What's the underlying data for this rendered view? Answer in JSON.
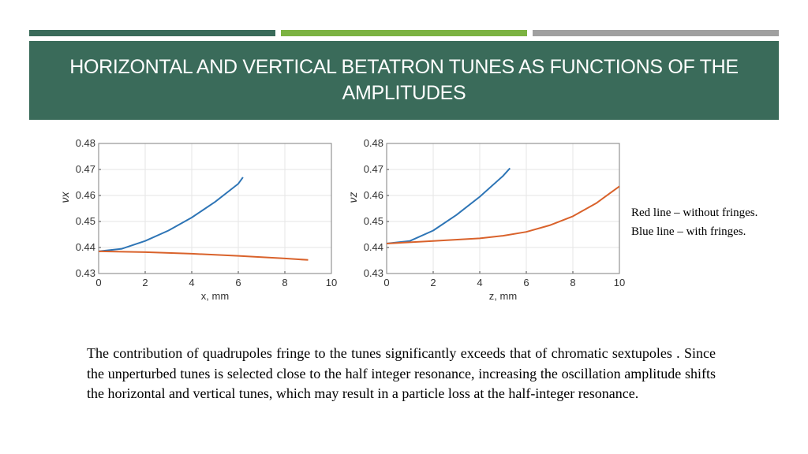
{
  "colors": {
    "title_bg": "#3a6b5a",
    "accent1": "#3a6b5a",
    "accent2": "#7cb342",
    "accent3": "#a0a0a0",
    "series_with": "#2e75b6",
    "series_without": "#d9622b"
  },
  "title": "HORIZONTAL AND VERTICAL BETATRON TUNES AS FUNCTIONS OF THE AMPLITUDES",
  "legend_note": {
    "line1": "Red line – without fringes.",
    "line2": "Blue line – with fringes."
  },
  "body_text": "The contribution of quadrupoles fringe to the tunes significantly exceeds that of chromatic sextupoles . Since the unperturbed tunes is selected close to the half integer resonance, increasing the oscillation amplitude shifts the horizontal and vertical tunes, which may result in a particle loss at the half-integer resonance.",
  "chart_data": [
    {
      "type": "line",
      "xlabel": "x, mm",
      "ylabel": "νx",
      "xlim": [
        0,
        10
      ],
      "ylim": [
        0.43,
        0.48
      ],
      "xticks": [
        "0",
        "2",
        "4",
        "6",
        "8",
        "10"
      ],
      "yticks": [
        "0.43",
        "0.44",
        "0.45",
        "0.46",
        "0.47",
        "0.48"
      ],
      "grid": true,
      "series": [
        {
          "color": "#2e75b6",
          "x": [
            0,
            1,
            2,
            3,
            4,
            5,
            6,
            6.2
          ],
          "y": [
            0.4385,
            0.4395,
            0.4425,
            0.4465,
            0.4515,
            0.4575,
            0.4645,
            0.467
          ]
        },
        {
          "color": "#d9622b",
          "x": [
            0,
            2,
            4,
            6,
            8,
            9
          ],
          "y": [
            0.4385,
            0.4382,
            0.4376,
            0.4368,
            0.4358,
            0.4352
          ]
        }
      ]
    },
    {
      "type": "line",
      "xlabel": "z, mm",
      "ylabel": "νz",
      "xlim": [
        0,
        10
      ],
      "ylim": [
        0.43,
        0.48
      ],
      "xticks": [
        "0",
        "2",
        "4",
        "6",
        "8",
        "10"
      ],
      "yticks": [
        "0.43",
        "0.44",
        "0.45",
        "0.46",
        "0.47",
        "0.48"
      ],
      "grid": true,
      "series": [
        {
          "color": "#2e75b6",
          "x": [
            0,
            1,
            2,
            3,
            4,
            5,
            5.3
          ],
          "y": [
            0.4415,
            0.4425,
            0.4465,
            0.4525,
            0.4595,
            0.4675,
            0.4705
          ]
        },
        {
          "color": "#d9622b",
          "x": [
            0,
            2,
            4,
            5,
            6,
            7,
            8,
            9,
            10
          ],
          "y": [
            0.4415,
            0.4425,
            0.4435,
            0.4445,
            0.446,
            0.4485,
            0.452,
            0.457,
            0.4635
          ]
        }
      ]
    }
  ]
}
